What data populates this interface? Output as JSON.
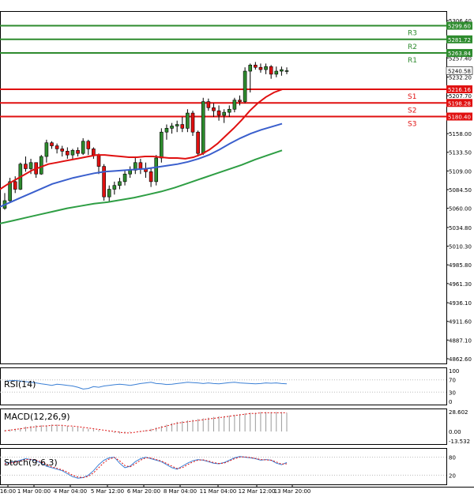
{
  "chart_data": {
    "type": "candlestick",
    "main": {
      "y_ticks": [
        "5306.40",
        "5281.60",
        "5257.40",
        "5232.20",
        "5207.70",
        "5182.60",
        "5158.00",
        "5133.50",
        "5109.00",
        "5084.50",
        "5060.00",
        "5034.80",
        "5010.30",
        "4985.80",
        "4961.30",
        "4936.10",
        "4911.60",
        "4887.10",
        "4862.60"
      ],
      "ylim": [
        4862.6,
        5306.4
      ],
      "levels": [
        {
          "label": "R3",
          "value": 5299.6,
          "value_label": "5299.60",
          "color": "#2e8b2e"
        },
        {
          "label": "R2",
          "value": 5281.72,
          "value_label": "5281.72",
          "color": "#2e8b2e"
        },
        {
          "label": "R1",
          "value": 5263.84,
          "value_label": "5263.84",
          "color": "#2e8b2e"
        },
        {
          "label": "S1",
          "value": 5216.16,
          "value_label": "5216.16",
          "color": "#e01010"
        },
        {
          "label": "S2",
          "value": 5198.28,
          "value_label": "5198.28",
          "color": "#e01010"
        },
        {
          "label": "S3",
          "value": 5180.4,
          "value_label": "5180.40",
          "color": "#e01010"
        }
      ],
      "last_price": "5240.58",
      "candles": [
        [
          5060,
          5080,
          5058,
          5070
        ],
        [
          5070,
          5100,
          5068,
          5095
        ],
        [
          5095,
          5102,
          5080,
          5085
        ],
        [
          5085,
          5120,
          5084,
          5118
        ],
        [
          5118,
          5128,
          5108,
          5112
        ],
        [
          5112,
          5125,
          5105,
          5120
        ],
        [
          5120,
          5118,
          5100,
          5105
        ],
        [
          5105,
          5130,
          5104,
          5128
        ],
        [
          5128,
          5150,
          5120,
          5146
        ],
        [
          5146,
          5148,
          5138,
          5142
        ],
        [
          5142,
          5145,
          5132,
          5138
        ],
        [
          5138,
          5142,
          5128,
          5135
        ],
        [
          5135,
          5140,
          5125,
          5130
        ],
        [
          5130,
          5138,
          5124,
          5136
        ],
        [
          5136,
          5140,
          5128,
          5132
        ],
        [
          5132,
          5152,
          5130,
          5148
        ],
        [
          5148,
          5150,
          5130,
          5138
        ],
        [
          5138,
          5140,
          5125,
          5130
        ],
        [
          5130,
          5132,
          5105,
          5115
        ],
        [
          5115,
          5118,
          5070,
          5075
        ],
        [
          5075,
          5090,
          5068,
          5085
        ],
        [
          5085,
          5095,
          5078,
          5090
        ],
        [
          5090,
          5100,
          5085,
          5095
        ],
        [
          5095,
          5110,
          5090,
          5105
        ],
        [
          5105,
          5115,
          5100,
          5110
        ],
        [
          5110,
          5128,
          5105,
          5120
        ],
        [
          5120,
          5125,
          5105,
          5112
        ],
        [
          5112,
          5120,
          5100,
          5108
        ],
        [
          5108,
          5112,
          5088,
          5095
        ],
        [
          5095,
          5130,
          5090,
          5126
        ],
        [
          5126,
          5165,
          5120,
          5160
        ],
        [
          5160,
          5170,
          5150,
          5165
        ],
        [
          5165,
          5172,
          5158,
          5168
        ],
        [
          5168,
          5175,
          5160,
          5170
        ],
        [
          5170,
          5180,
          5160,
          5165
        ],
        [
          5165,
          5190,
          5160,
          5185
        ],
        [
          5185,
          5188,
          5155,
          5160
        ],
        [
          5160,
          5162,
          5128,
          5132
        ],
        [
          5132,
          5205,
          5130,
          5200
        ],
        [
          5200,
          5204,
          5188,
          5192
        ],
        [
          5192,
          5198,
          5180,
          5188
        ],
        [
          5188,
          5195,
          5175,
          5182
        ],
        [
          5182,
          5190,
          5172,
          5186
        ],
        [
          5186,
          5195,
          5180,
          5190
        ],
        [
          5190,
          5205,
          5186,
          5202
        ],
        [
          5202,
          5208,
          5195,
          5200
        ],
        [
          5200,
          5245,
          5198,
          5240
        ],
        [
          5240,
          5250,
          5212,
          5248
        ],
        [
          5248,
          5252,
          5242,
          5245
        ],
        [
          5245,
          5250,
          5238,
          5242
        ],
        [
          5242,
          5250,
          5236,
          5246
        ],
        [
          5246,
          5248,
          5230,
          5236
        ],
        [
          5236,
          5246,
          5232,
          5240
        ],
        [
          5240,
          5246,
          5234,
          5242
        ],
        [
          5240,
          5245,
          5236,
          5240.58
        ]
      ],
      "ma_red": [
        5085,
        5092,
        5098,
        5104,
        5110,
        5114,
        5118,
        5120,
        5122,
        5124,
        5126,
        5128,
        5130,
        5130,
        5129,
        5128,
        5127,
        5127,
        5128,
        5128,
        5127,
        5126,
        5126,
        5125,
        5127,
        5131,
        5137,
        5145,
        5155,
        5165,
        5176,
        5188,
        5198,
        5206,
        5212,
        5216
      ],
      "ma_blue": [
        5062,
        5068,
        5074,
        5080,
        5086,
        5092,
        5096,
        5100,
        5103,
        5106,
        5108,
        5109,
        5110,
        5111,
        5112,
        5114,
        5116,
        5118,
        5121,
        5125,
        5130,
        5137,
        5145,
        5152,
        5158,
        5163,
        5167,
        5171
      ],
      "ma_green": [
        5040,
        5044,
        5048,
        5052,
        5056,
        5060,
        5063,
        5066,
        5068,
        5071,
        5074,
        5078,
        5082,
        5087,
        5093,
        5099,
        5105,
        5111,
        5117,
        5124,
        5130,
        5136
      ]
    },
    "rsi": {
      "label": "RSI(14)",
      "ticks": [
        "100",
        "70",
        "30",
        "0"
      ],
      "values": [
        65,
        67,
        68,
        66,
        64,
        62,
        60,
        57,
        55,
        52,
        56,
        54,
        52,
        50,
        46,
        40,
        42,
        48,
        46,
        50,
        52,
        54,
        56,
        54,
        52,
        55,
        58,
        60,
        62,
        58,
        57,
        55,
        56,
        58,
        60,
        62,
        61,
        60,
        58,
        60,
        58,
        57,
        59,
        61,
        62,
        60,
        59,
        58,
        57,
        58,
        60,
        59,
        60,
        58,
        57
      ]
    },
    "macd": {
      "label": "MACD(12,26,9)",
      "ticks": [
        "28.602",
        "0.00",
        "-13.532"
      ],
      "histogram": [
        2,
        3,
        4,
        5,
        7,
        8,
        9,
        9,
        9,
        10,
        10,
        9,
        8,
        7,
        6,
        5,
        4,
        3,
        2,
        0,
        -1,
        -2,
        -3,
        -2,
        -1,
        0,
        1,
        2,
        4,
        6,
        8,
        10,
        12,
        14,
        15,
        16,
        17,
        18,
        19,
        20,
        21,
        22,
        22,
        23,
        24,
        25,
        26,
        27,
        27,
        28,
        28,
        28,
        28,
        28,
        27
      ],
      "signal": [
        1,
        2,
        3,
        4,
        5,
        6,
        7,
        8,
        8,
        9,
        9,
        9,
        8,
        8,
        7,
        6,
        5,
        4,
        3,
        2,
        1,
        0,
        -1,
        -2,
        -2,
        -1,
        0,
        1,
        2,
        4,
        6,
        8,
        10,
        12,
        13,
        14,
        15,
        16,
        17,
        18,
        19,
        20,
        21,
        22,
        23,
        24,
        25,
        26,
        26,
        27,
        27,
        27,
        27,
        27,
        27
      ]
    },
    "stoch": {
      "label": "Stoch(9,6,3)",
      "ticks": [
        "80",
        "20"
      ],
      "k": [
        60,
        62,
        65,
        70,
        75,
        72,
        68,
        60,
        50,
        45,
        40,
        35,
        25,
        15,
        10,
        12,
        20,
        35,
        55,
        70,
        78,
        80,
        60,
        45,
        50,
        65,
        75,
        80,
        75,
        70,
        65,
        55,
        45,
        40,
        50,
        60,
        68,
        72,
        70,
        65,
        60,
        58,
        62,
        70,
        78,
        82,
        80,
        78,
        75,
        70,
        72,
        70,
        60,
        55,
        62
      ],
      "d": [
        58,
        60,
        63,
        67,
        72,
        73,
        70,
        64,
        55,
        48,
        43,
        38,
        30,
        20,
        14,
        12,
        16,
        28,
        45,
        62,
        74,
        79,
        68,
        52,
        48,
        58,
        70,
        78,
        77,
        72,
        67,
        59,
        50,
        42,
        45,
        55,
        64,
        70,
        71,
        67,
        62,
        59,
        60,
        67,
        75,
        80,
        81,
        79,
        76,
        72,
        71,
        70,
        64,
        57,
        58
      ]
    },
    "x_ticks": [
      "16:00",
      "1 Mar 00:00",
      "4 Mar 04:00",
      "5 Mar 12:00",
      "6 Mar 20:00",
      "8 Mar 04:00",
      "11 Mar 04:00",
      "12 Mar 12:00",
      "13 Mar 20:00"
    ]
  }
}
